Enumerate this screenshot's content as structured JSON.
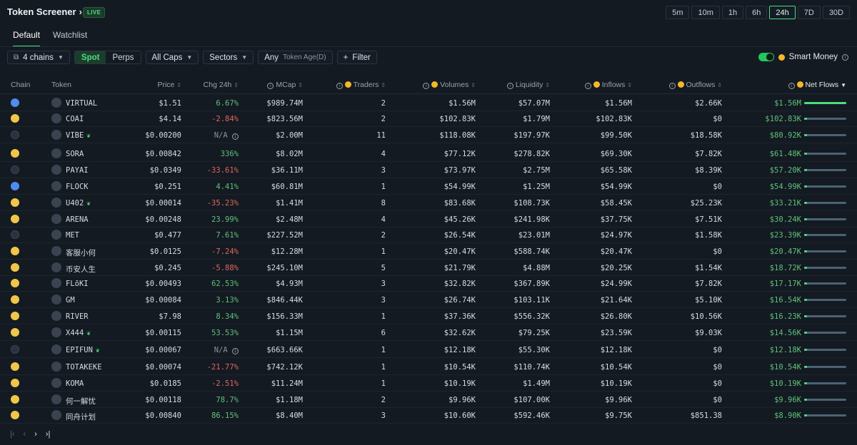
{
  "header": {
    "title": "Token Screener",
    "live_badge": "LIVE",
    "timeframes": [
      "5m",
      "10m",
      "1h",
      "6h",
      "24h",
      "7D",
      "30D"
    ],
    "active_timeframe": "24h"
  },
  "tabs": [
    "Default",
    "Watchlist"
  ],
  "filters": {
    "chains": "4 chains",
    "spot": "Spot",
    "perps": "Perps",
    "caps": "All Caps",
    "sectors": "Sectors",
    "age_any": "Any",
    "age_label": "Token Age(D)",
    "filter": "Filter",
    "smart_money": "Smart Money"
  },
  "columns": {
    "chain": "Chain",
    "token": "Token",
    "price": "Price",
    "chg": "Chg 24h",
    "mcap": "MCap",
    "traders": "Traders",
    "volumes": "Volumes",
    "liquidity": "Liquidity",
    "inflows": "Inflows",
    "outflows": "Outflows",
    "netflows": "Net Flows"
  },
  "colors": {
    "accent": "#4ade80",
    "negative": "#e0675d",
    "bg": "#141a22"
  },
  "rows": [
    {
      "chain": "base",
      "token": "VIRTUAL",
      "leaf": false,
      "price": "$1.51",
      "chg": "6.67%",
      "chg_dir": "pos",
      "mcap": "$989.74M",
      "traders": "2",
      "volumes": "$1.56M",
      "liquidity": "$57.07M",
      "inflows": "$1.56M",
      "outflows": "$2.66K",
      "net": "$1.56M",
      "net_frac": 1.0
    },
    {
      "chain": "bsc",
      "token": "COAI",
      "leaf": false,
      "price": "$4.14",
      "chg": "-2.84%",
      "chg_dir": "neg",
      "mcap": "$823.56M",
      "traders": "2",
      "volumes": "$102.83K",
      "liquidity": "$1.79M",
      "inflows": "$102.83K",
      "outflows": "$0",
      "net": "$102.83K",
      "net_frac": 0.066
    },
    {
      "chain": "sol",
      "token": "VIBE",
      "leaf": true,
      "price": "$0.00200",
      "chg": "N/A",
      "chg_dir": "na",
      "mcap": "$2.00M",
      "traders": "11",
      "volumes": "$118.08K",
      "liquidity": "$197.97K",
      "inflows": "$99.50K",
      "outflows": "$18.58K",
      "net": "$80.92K",
      "net_frac": 0.052
    },
    {
      "chain": "bsc",
      "token": "SORA",
      "leaf": false,
      "price": "$0.00842",
      "chg": "336%",
      "chg_dir": "pos",
      "mcap": "$8.02M",
      "traders": "4",
      "volumes": "$77.12K",
      "liquidity": "$278.82K",
      "inflows": "$69.30K",
      "outflows": "$7.82K",
      "net": "$61.48K",
      "net_frac": 0.039
    },
    {
      "chain": "sol",
      "token": "PAYAI",
      "leaf": false,
      "price": "$0.0349",
      "chg": "-33.61%",
      "chg_dir": "neg",
      "mcap": "$36.11M",
      "traders": "3",
      "volumes": "$73.97K",
      "liquidity": "$2.75M",
      "inflows": "$65.58K",
      "outflows": "$8.39K",
      "net": "$57.20K",
      "net_frac": 0.037
    },
    {
      "chain": "base",
      "token": "FLOCK",
      "leaf": false,
      "price": "$0.251",
      "chg": "4.41%",
      "chg_dir": "pos",
      "mcap": "$60.81M",
      "traders": "1",
      "volumes": "$54.99K",
      "liquidity": "$1.25M",
      "inflows": "$54.99K",
      "outflows": "$0",
      "net": "$54.99K",
      "net_frac": 0.035
    },
    {
      "chain": "bsc",
      "token": "U402",
      "leaf": true,
      "price": "$0.00014",
      "chg": "-35.23%",
      "chg_dir": "neg",
      "mcap": "$1.41M",
      "traders": "8",
      "volumes": "$83.68K",
      "liquidity": "$108.73K",
      "inflows": "$58.45K",
      "outflows": "$25.23K",
      "net": "$33.21K",
      "net_frac": 0.021
    },
    {
      "chain": "bsc",
      "token": "ARENA",
      "leaf": false,
      "price": "$0.00248",
      "chg": "23.99%",
      "chg_dir": "pos",
      "mcap": "$2.48M",
      "traders": "4",
      "volumes": "$45.26K",
      "liquidity": "$241.98K",
      "inflows": "$37.75K",
      "outflows": "$7.51K",
      "net": "$30.24K",
      "net_frac": 0.019
    },
    {
      "chain": "sol",
      "token": "MET",
      "leaf": false,
      "price": "$0.477",
      "chg": "7.61%",
      "chg_dir": "pos",
      "mcap": "$227.52M",
      "traders": "2",
      "volumes": "$26.54K",
      "liquidity": "$23.01M",
      "inflows": "$24.97K",
      "outflows": "$1.58K",
      "net": "$23.39K",
      "net_frac": 0.015
    },
    {
      "chain": "bsc",
      "token": "客服小何",
      "leaf": false,
      "price": "$0.0125",
      "chg": "-7.24%",
      "chg_dir": "neg",
      "mcap": "$12.28M",
      "traders": "1",
      "volumes": "$20.47K",
      "liquidity": "$588.74K",
      "inflows": "$20.47K",
      "outflows": "$0",
      "net": "$20.47K",
      "net_frac": 0.013
    },
    {
      "chain": "bsc",
      "token": "币安人生",
      "leaf": false,
      "price": "$0.245",
      "chg": "-5.88%",
      "chg_dir": "neg",
      "mcap": "$245.10M",
      "traders": "5",
      "volumes": "$21.79K",
      "liquidity": "$4.88M",
      "inflows": "$20.25K",
      "outflows": "$1.54K",
      "net": "$18.72K",
      "net_frac": 0.012
    },
    {
      "chain": "bsc",
      "token": "FLōKI",
      "leaf": false,
      "price": "$0.00493",
      "chg": "62.53%",
      "chg_dir": "pos",
      "mcap": "$4.93M",
      "traders": "3",
      "volumes": "$32.82K",
      "liquidity": "$367.89K",
      "inflows": "$24.99K",
      "outflows": "$7.82K",
      "net": "$17.17K",
      "net_frac": 0.011
    },
    {
      "chain": "bsc",
      "token": "GM",
      "leaf": false,
      "price": "$0.00084",
      "chg": "3.13%",
      "chg_dir": "pos",
      "mcap": "$846.44K",
      "traders": "3",
      "volumes": "$26.74K",
      "liquidity": "$103.11K",
      "inflows": "$21.64K",
      "outflows": "$5.10K",
      "net": "$16.54K",
      "net_frac": 0.011
    },
    {
      "chain": "bsc",
      "token": "RIVER",
      "leaf": false,
      "price": "$7.98",
      "chg": "8.34%",
      "chg_dir": "pos",
      "mcap": "$156.33M",
      "traders": "1",
      "volumes": "$37.36K",
      "liquidity": "$556.32K",
      "inflows": "$26.80K",
      "outflows": "$10.56K",
      "net": "$16.23K",
      "net_frac": 0.01
    },
    {
      "chain": "bsc",
      "token": "X444",
      "leaf": true,
      "price": "$0.00115",
      "chg": "53.53%",
      "chg_dir": "pos",
      "mcap": "$1.15M",
      "traders": "6",
      "volumes": "$32.62K",
      "liquidity": "$79.25K",
      "inflows": "$23.59K",
      "outflows": "$9.03K",
      "net": "$14.56K",
      "net_frac": 0.009
    },
    {
      "chain": "sol",
      "token": "EPIFUN",
      "leaf": true,
      "price": "$0.00067",
      "chg": "N/A",
      "chg_dir": "na",
      "mcap": "$663.66K",
      "traders": "1",
      "volumes": "$12.18K",
      "liquidity": "$55.30K",
      "inflows": "$12.18K",
      "outflows": "$0",
      "net": "$12.18K",
      "net_frac": 0.008
    },
    {
      "chain": "bsc",
      "token": "TOTAKEKE",
      "leaf": false,
      "price": "$0.00074",
      "chg": "-21.77%",
      "chg_dir": "neg",
      "mcap": "$742.12K",
      "traders": "1",
      "volumes": "$10.54K",
      "liquidity": "$110.74K",
      "inflows": "$10.54K",
      "outflows": "$0",
      "net": "$10.54K",
      "net_frac": 0.007
    },
    {
      "chain": "bsc",
      "token": "KOMA",
      "leaf": false,
      "price": "$0.0185",
      "chg": "-2.51%",
      "chg_dir": "neg",
      "mcap": "$11.24M",
      "traders": "1",
      "volumes": "$10.19K",
      "liquidity": "$1.49M",
      "inflows": "$10.19K",
      "outflows": "$0",
      "net": "$10.19K",
      "net_frac": 0.007
    },
    {
      "chain": "bsc",
      "token": "何一解忧",
      "leaf": false,
      "price": "$0.00118",
      "chg": "78.7%",
      "chg_dir": "pos",
      "mcap": "$1.18M",
      "traders": "2",
      "volumes": "$9.96K",
      "liquidity": "$107.00K",
      "inflows": "$9.96K",
      "outflows": "$0",
      "net": "$9.96K",
      "net_frac": 0.006
    },
    {
      "chain": "bsc",
      "token": "同舟计划",
      "leaf": false,
      "price": "$0.00840",
      "chg": "86.15%",
      "chg_dir": "pos",
      "mcap": "$8.40M",
      "traders": "3",
      "volumes": "$10.60K",
      "liquidity": "$592.46K",
      "inflows": "$9.75K",
      "outflows": "$851.38",
      "net": "$8.90K",
      "net_frac": 0.006
    }
  ],
  "pagination": {
    "first": "|‹",
    "prev": "‹",
    "next": "›",
    "last": "›|"
  }
}
